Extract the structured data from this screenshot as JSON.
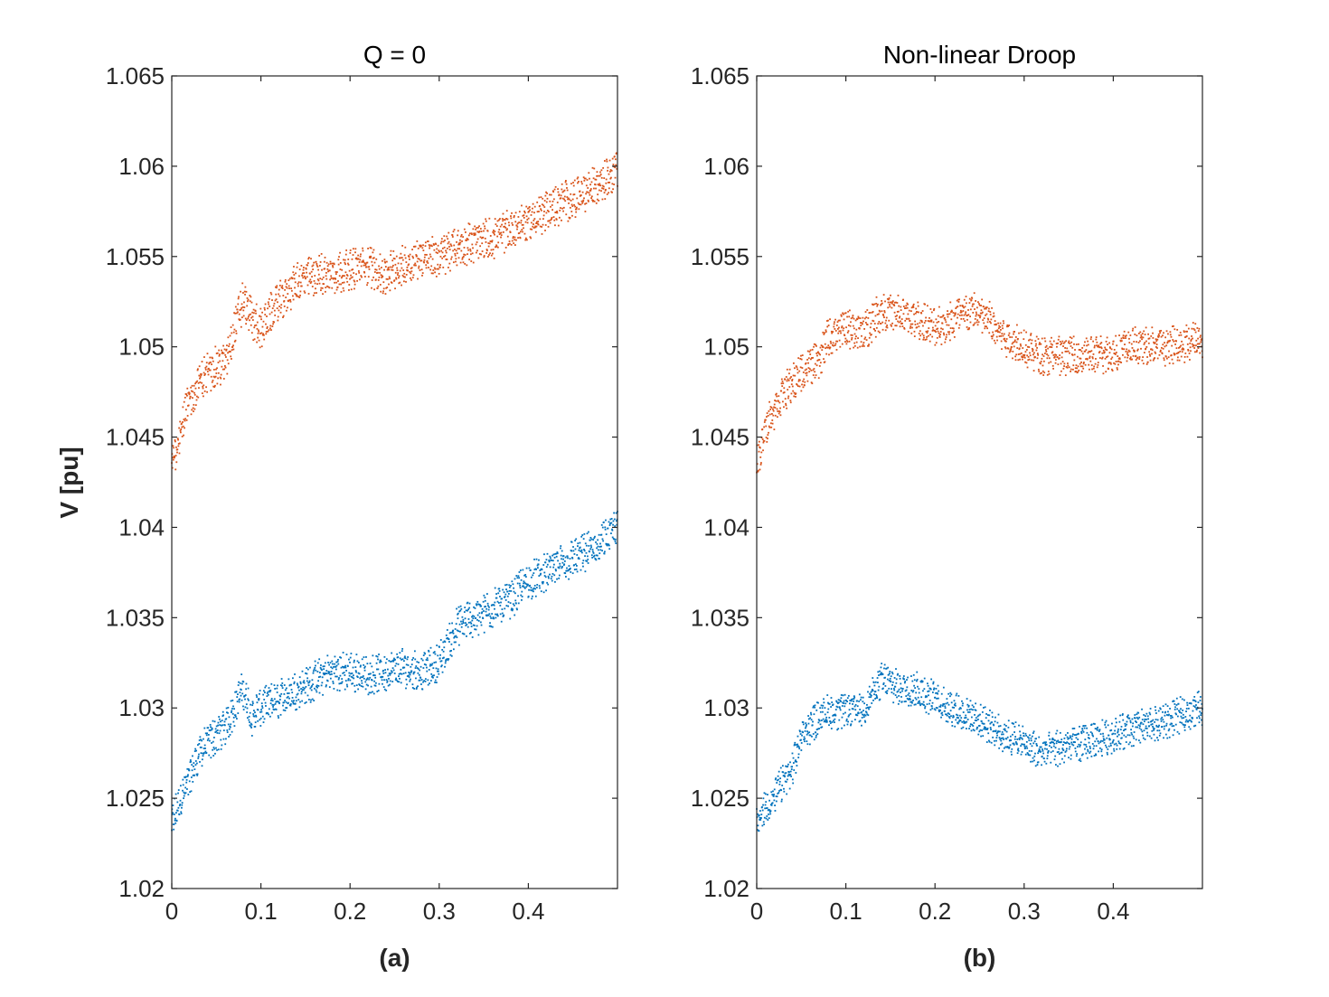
{
  "figure": {
    "ylabel": "V [pu]",
    "colors": {
      "series_a": "#0072BD",
      "series_b": "#D95319",
      "axis": "#262626"
    }
  },
  "chart_data": [
    {
      "type": "scatter",
      "title": "Q = 0",
      "xlabel": "(a)",
      "ylabel": "V [pu]",
      "xlim": [
        0,
        0.5
      ],
      "ylim": [
        1.02,
        1.065
      ],
      "xticks": [
        "0",
        "0.1",
        "0.2",
        "0.3",
        "0.4"
      ],
      "xtick_values": [
        0,
        0.1,
        0.2,
        0.3,
        0.4
      ],
      "yticks": [
        "1.02",
        "1.025",
        "1.03",
        "1.035",
        "1.04",
        "1.045",
        "1.05",
        "1.055",
        "1.06",
        "1.065"
      ],
      "ytick_values": [
        1.02,
        1.025,
        1.03,
        1.035,
        1.04,
        1.045,
        1.05,
        1.055,
        1.06,
        1.065
      ],
      "grid": false,
      "series": [
        {
          "color": "#0072BD",
          "x": [
            0,
            0.01,
            0.02,
            0.03,
            0.04,
            0.05,
            0.06,
            0.07,
            0.08,
            0.09,
            0.1,
            0.12,
            0.14,
            0.16,
            0.18,
            0.2,
            0.22,
            0.24,
            0.26,
            0.28,
            0.3,
            0.32,
            0.34,
            0.36,
            0.38,
            0.4,
            0.42,
            0.44,
            0.46,
            0.48,
            0.5
          ],
          "y": [
            1.0235,
            1.025,
            1.026,
            1.0275,
            1.028,
            1.0285,
            1.029,
            1.03,
            1.031,
            1.0295,
            1.03,
            1.0305,
            1.031,
            1.0315,
            1.032,
            1.032,
            1.0318,
            1.032,
            1.0322,
            1.032,
            1.0325,
            1.0345,
            1.035,
            1.0355,
            1.036,
            1.037,
            1.0375,
            1.038,
            1.0385,
            1.039,
            1.04
          ],
          "spread": 0.0015
        },
        {
          "color": "#D95319",
          "x": [
            0,
            0.01,
            0.02,
            0.03,
            0.04,
            0.05,
            0.06,
            0.07,
            0.08,
            0.09,
            0.1,
            0.12,
            0.14,
            0.16,
            0.18,
            0.2,
            0.22,
            0.24,
            0.26,
            0.28,
            0.3,
            0.32,
            0.34,
            0.36,
            0.38,
            0.4,
            0.42,
            0.44,
            0.46,
            0.48,
            0.5
          ],
          "y": [
            1.0435,
            1.0455,
            1.047,
            1.048,
            1.0485,
            1.049,
            1.049,
            1.051,
            1.0525,
            1.0515,
            1.051,
            1.0525,
            1.0535,
            1.054,
            1.054,
            1.0543,
            1.0545,
            1.054,
            1.0545,
            1.055,
            1.055,
            1.0555,
            1.0558,
            1.056,
            1.0565,
            1.057,
            1.0575,
            1.058,
            1.0585,
            1.059,
            1.06
          ],
          "spread": 0.0016
        }
      ]
    },
    {
      "type": "scatter",
      "title": "Non-linear Droop",
      "xlabel": "(b)",
      "ylabel": "",
      "xlim": [
        0,
        0.5
      ],
      "ylim": [
        1.02,
        1.065
      ],
      "xticks": [
        "0",
        "0.1",
        "0.2",
        "0.3",
        "0.4"
      ],
      "xtick_values": [
        0,
        0.1,
        0.2,
        0.3,
        0.4
      ],
      "yticks": [
        "1.02",
        "1.025",
        "1.03",
        "1.035",
        "1.04",
        "1.045",
        "1.05",
        "1.055",
        "1.06",
        "1.065"
      ],
      "ytick_values": [
        1.02,
        1.025,
        1.03,
        1.035,
        1.04,
        1.045,
        1.05,
        1.055,
        1.06,
        1.065
      ],
      "grid": false,
      "series": [
        {
          "color": "#0072BD",
          "x": [
            0,
            0.01,
            0.02,
            0.03,
            0.04,
            0.05,
            0.06,
            0.07,
            0.08,
            0.1,
            0.12,
            0.14,
            0.16,
            0.18,
            0.2,
            0.22,
            0.24,
            0.26,
            0.28,
            0.3,
            0.32,
            0.34,
            0.36,
            0.38,
            0.4,
            0.42,
            0.44,
            0.46,
            0.48,
            0.5
          ],
          "y": [
            1.0235,
            1.0245,
            1.025,
            1.026,
            1.0265,
            1.0285,
            1.029,
            1.0295,
            1.0298,
            1.0298,
            1.03,
            1.0315,
            1.0312,
            1.031,
            1.0305,
            1.03,
            1.0295,
            1.029,
            1.0285,
            1.028,
            1.0275,
            1.0278,
            1.028,
            1.0282,
            1.0285,
            1.0288,
            1.029,
            1.0293,
            1.0297,
            1.03
          ],
          "spread": 0.0014
        },
        {
          "color": "#D95319",
          "x": [
            0,
            0.01,
            0.02,
            0.03,
            0.04,
            0.05,
            0.06,
            0.07,
            0.08,
            0.1,
            0.12,
            0.14,
            0.16,
            0.18,
            0.2,
            0.22,
            0.24,
            0.26,
            0.28,
            0.3,
            0.32,
            0.34,
            0.36,
            0.38,
            0.4,
            0.42,
            0.44,
            0.46,
            0.48,
            0.5
          ],
          "y": [
            1.0435,
            1.0455,
            1.0465,
            1.0475,
            1.048,
            1.0485,
            1.049,
            1.0492,
            1.0505,
            1.051,
            1.0508,
            1.052,
            1.0518,
            1.0515,
            1.051,
            1.0515,
            1.052,
            1.0515,
            1.0505,
            1.05,
            1.0495,
            1.0495,
            1.0495,
            1.0495,
            1.0497,
            1.05,
            1.05,
            1.05,
            1.0502,
            1.0505
          ],
          "spread": 0.0015
        }
      ]
    }
  ]
}
